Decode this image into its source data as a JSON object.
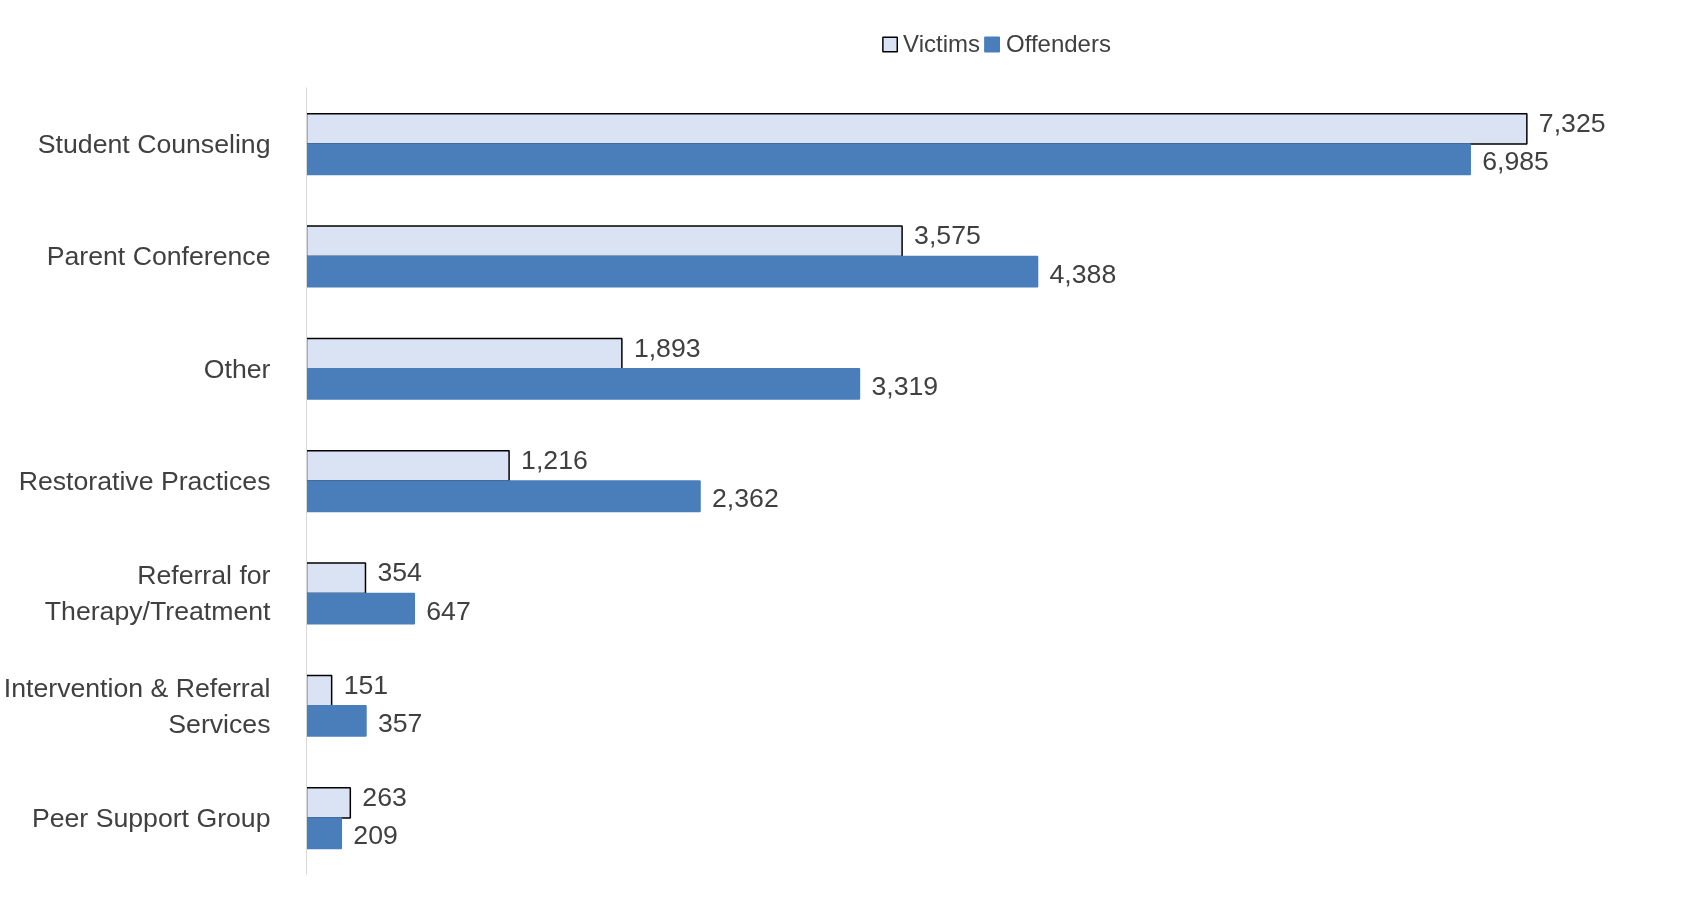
{
  "chart_data": {
    "type": "bar",
    "orientation": "horizontal",
    "categories": [
      "Student Counseling",
      "Parent Conference",
      "Other",
      "Restorative Practices",
      "Referral for\nTherapy/Treatment",
      "Intervention & Referral\nServices",
      "Peer Support Group"
    ],
    "series": [
      {
        "name": "Victims",
        "color": "#dae3f3",
        "values": [
          7325,
          3575,
          1893,
          1216,
          354,
          151,
          263
        ],
        "value_labels": [
          "7,325",
          "3,575",
          "1,893",
          "1,216",
          "354",
          "151",
          "263"
        ]
      },
      {
        "name": "Offenders",
        "color": "#4a7ebb",
        "values": [
          6985,
          4388,
          3319,
          2362,
          647,
          357,
          209
        ],
        "value_labels": [
          "6,985",
          "4,388",
          "3,319",
          "2,362",
          "647",
          "357",
          "209"
        ]
      }
    ],
    "legend": "top",
    "grid": false
  }
}
